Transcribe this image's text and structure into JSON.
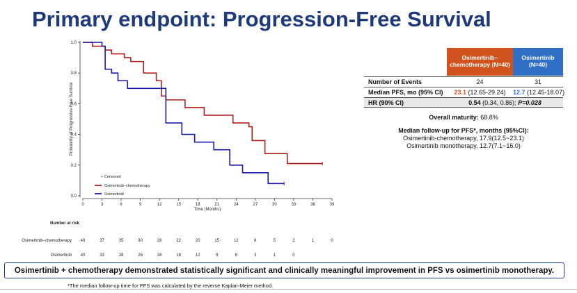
{
  "slide": {
    "title": "Primary endpoint: Progression-Free Survival",
    "conclusion": "Osimertinib + chemotherapy demonstrated statistically significant and clinically meaningful improvement in PFS vs osimertinib monotherapy.",
    "footnote": "*The median follow-up time for PFS was calculated by the reverse Kaplan-Meier method."
  },
  "chart_data": {
    "type": "line",
    "title": "",
    "xlabel": "Time (Months)",
    "ylabel": "Probability of Progressive-Free Survival",
    "xlim": [
      0,
      39
    ],
    "ylim": [
      0,
      1.0
    ],
    "x_ticks": [
      0,
      3,
      6,
      9,
      12,
      15,
      18,
      21,
      24,
      27,
      30,
      33,
      36,
      39
    ],
    "y_ticks": [
      "0.0",
      "0.2",
      "0.4",
      "0.6",
      "0.8",
      "1.0"
    ],
    "grid": false,
    "legend": {
      "position": "bottom-left",
      "censored_label": "+ Censored",
      "entries": [
        "Osimertinib–chemotherapy",
        "Osimertinib"
      ]
    },
    "colors": {
      "combo": "#b01e1e",
      "mono": "#1a1aa6"
    },
    "series": [
      {
        "name": "Osimertinib–chemotherapy",
        "step": true,
        "x": [
          0,
          1.5,
          3.5,
          4.5,
          6.5,
          7.5,
          9.5,
          11.5,
          12.3,
          13,
          16,
          19,
          23.5,
          26,
          26.5,
          28.5,
          31.5,
          32,
          37.5
        ],
        "y": [
          1.0,
          0.975,
          0.95,
          0.925,
          0.9,
          0.875,
          0.8,
          0.75,
          0.65,
          0.625,
          0.575,
          0.525,
          0.475,
          0.45,
          0.36,
          0.275,
          0.275,
          0.21,
          0.21
        ]
      },
      {
        "name": "Osimertinib",
        "step": true,
        "x": [
          0,
          3,
          3.5,
          4.5,
          5.5,
          7,
          12.5,
          13,
          15.5,
          17.5,
          20.5,
          23,
          25,
          29,
          31.5
        ],
        "y": [
          1.0,
          0.975,
          0.825,
          0.8,
          0.75,
          0.7,
          0.7,
          0.475,
          0.4,
          0.35,
          0.3,
          0.2,
          0.15,
          0.08,
          0.08
        ]
      }
    ],
    "risk_table": {
      "title": "Number at risk",
      "times": [
        0,
        3,
        6,
        9,
        12,
        15,
        18,
        21,
        24,
        27,
        30,
        33,
        36,
        39
      ],
      "rows": [
        {
          "label": "Osimertinib–chemotherapy",
          "counts": [
            "40",
            "37",
            "35",
            "30",
            "28",
            "22",
            "20",
            "15",
            "12",
            "8",
            "5",
            "2",
            "1",
            "0"
          ]
        },
        {
          "label": "Osimertinib",
          "counts": [
            "40",
            "33",
            "28",
            "26",
            "26",
            "18",
            "12",
            "9",
            "6",
            "3",
            "1",
            "0"
          ]
        }
      ]
    }
  },
  "table": {
    "head_combo": "Osimertinib–chemotherapy (N=40)",
    "head_mono": "Osimertinib (N=40)",
    "rows": {
      "events": {
        "label": "Number of Events",
        "combo": "24",
        "mono": "31"
      },
      "median": {
        "label": "Median PFS, mo (95% CI)",
        "combo_value": "23.1",
        "combo_ci": " (12.65-29.24)",
        "mono_value": "12.7",
        "mono_ci": " (12.45-18.07)"
      },
      "hr": {
        "label": "HR (90% CI)",
        "value": "0.54",
        "ci": " (0.34, 0.86); ",
        "p": "P=0.028"
      }
    }
  },
  "maturity": {
    "label": "Overall maturity:",
    "value": " 68.8%"
  },
  "followup": {
    "header": "Median follow-up for PFS*, months (95%CI):",
    "line1": "Osimertinib-chemotherapy, 17.9(12.5~23.1)",
    "line2": "Osimertinib monotherapy, 12.7(7.1~16.0)"
  }
}
